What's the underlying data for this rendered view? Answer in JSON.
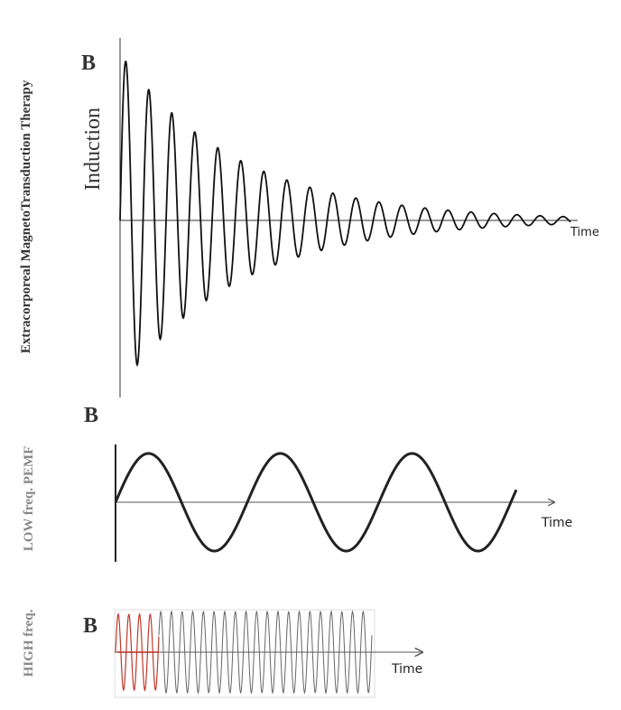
{
  "panels": [
    {
      "label": "B",
      "side_label": "Extracorporeal MagnetoTransduction Therapy",
      "y_label": "Induction",
      "x_label": "Time"
    },
    {
      "label": "B",
      "side_label": "LOW freq.  PEMF",
      "x_label": "Time"
    },
    {
      "label": "B",
      "side_label": "HIGH freq.",
      "x_label": "Time"
    }
  ]
}
